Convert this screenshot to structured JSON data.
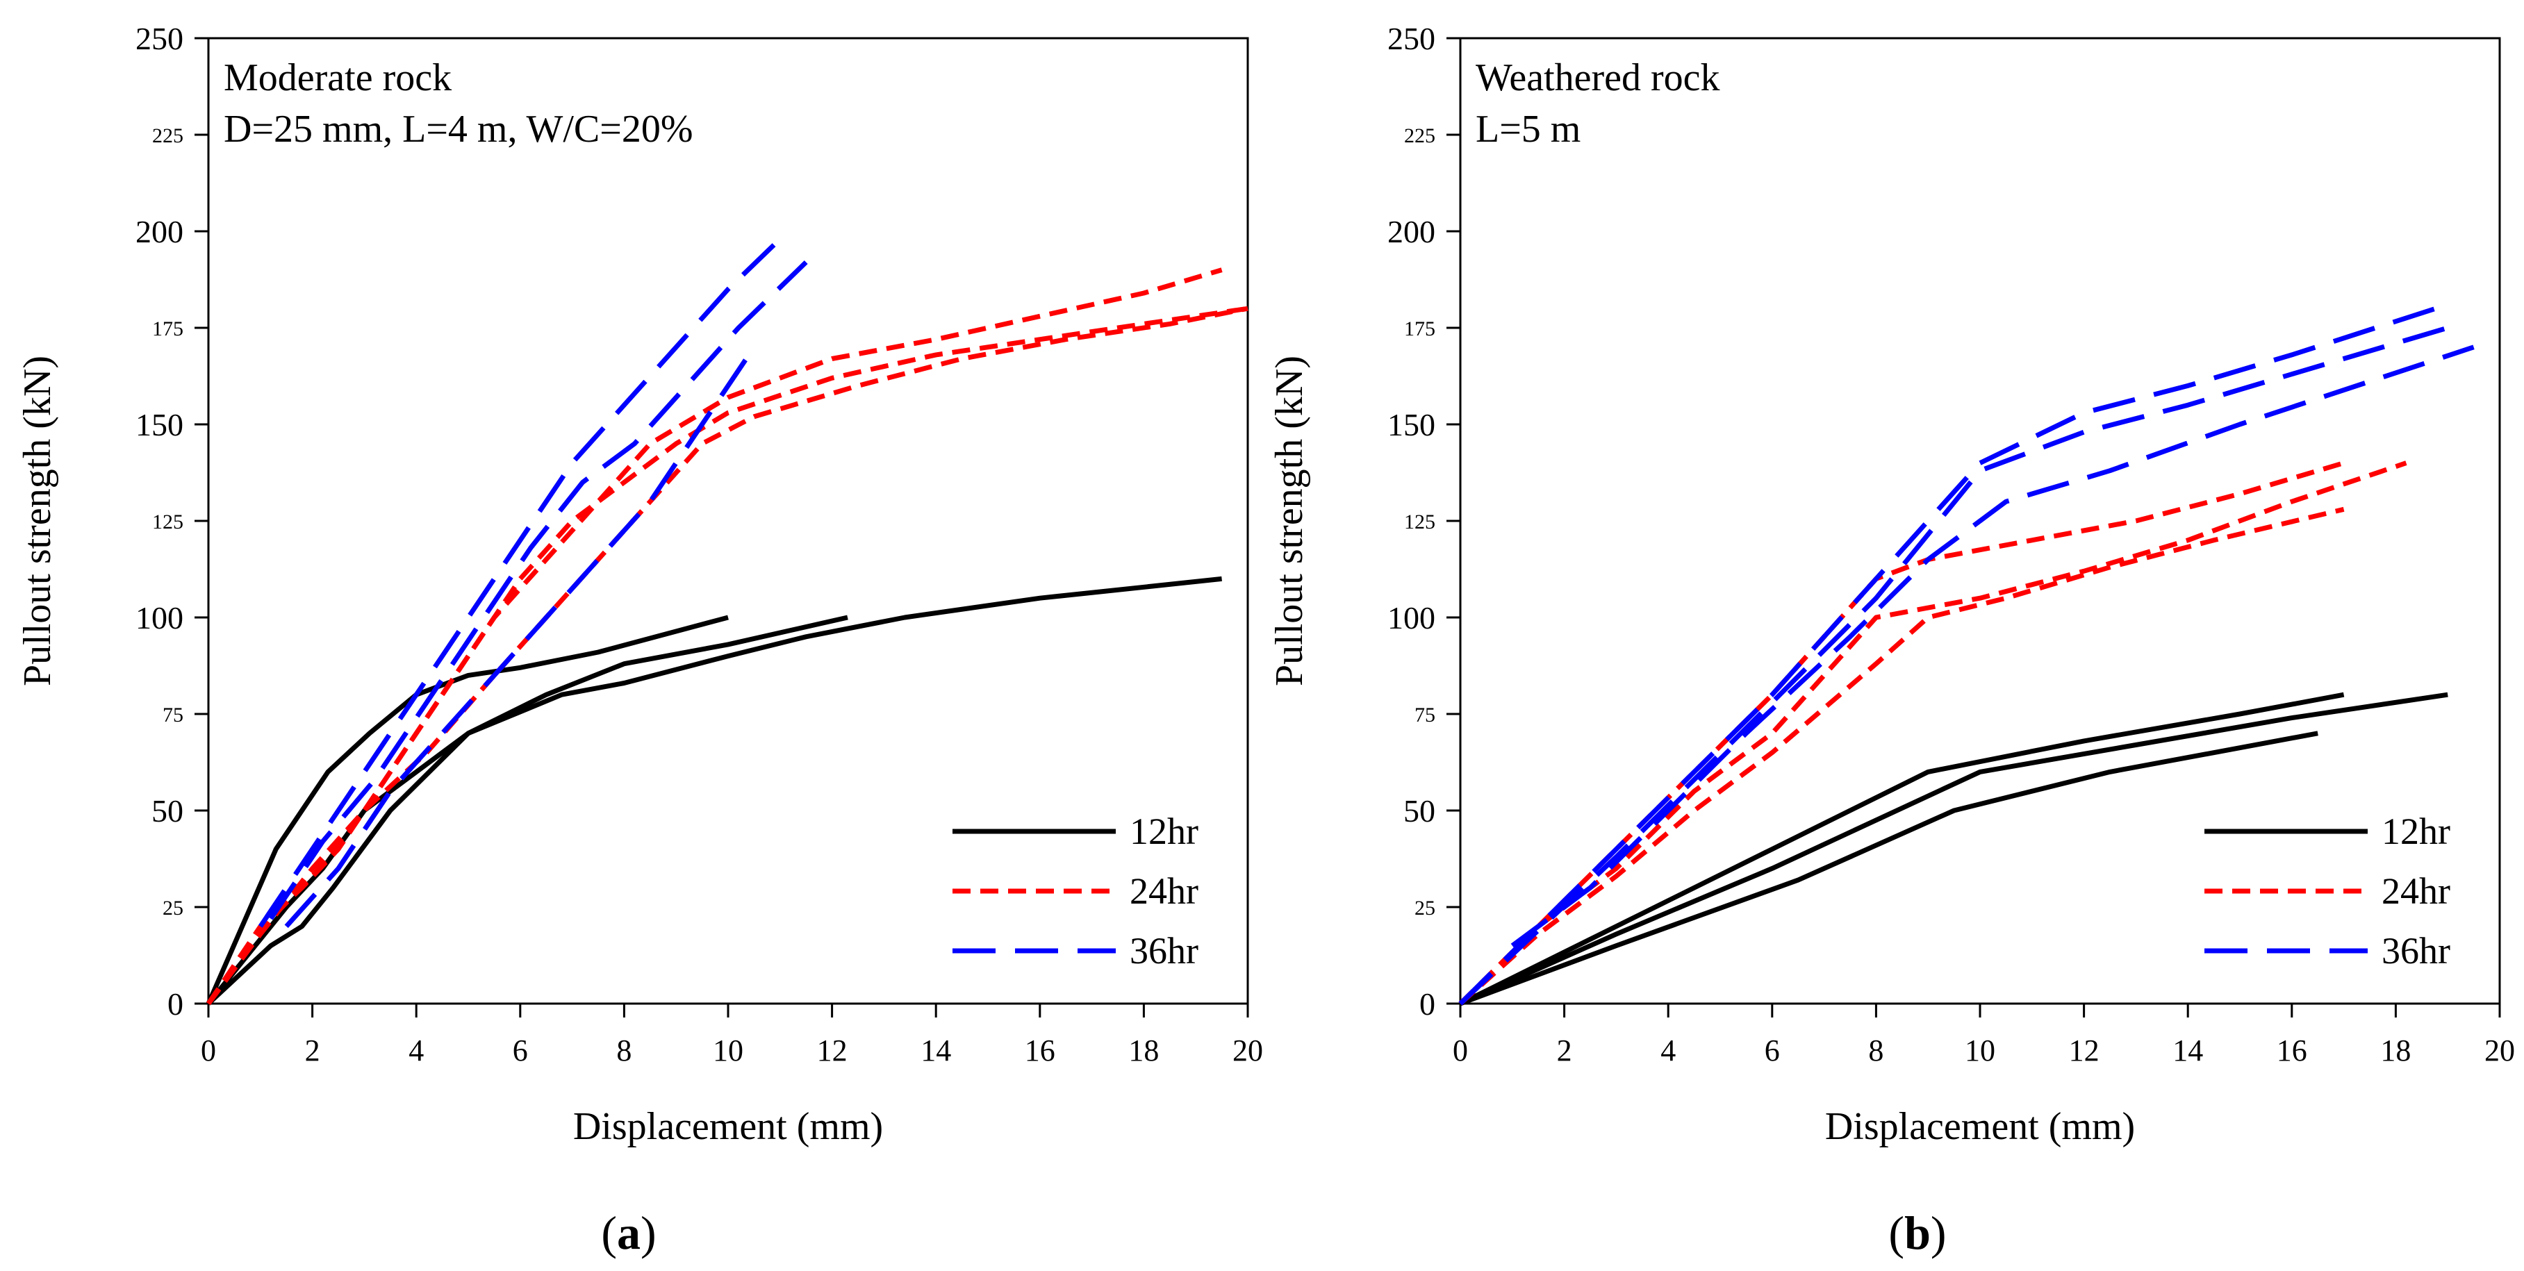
{
  "figure_labels": [
    "(a)",
    "(b)"
  ],
  "series_styles": [
    {
      "name": "12hr",
      "color": "#000000",
      "dash": "solid"
    },
    {
      "name": "24hr",
      "color": "#ff0000",
      "dash": "short-dash"
    },
    {
      "name": "36hr",
      "color": "#0000ff",
      "dash": "long-dash"
    }
  ],
  "chart_data": [
    {
      "type": "line",
      "panel": "(a)",
      "annotation_lines": [
        "Moderate rock",
        "D=25 mm, L=4 m, W/C=20%"
      ],
      "xlabel": "Displacement (mm)",
      "ylabel": "Pullout strength (kN)",
      "xlim": [
        0,
        20
      ],
      "ylim": [
        0,
        250
      ],
      "xticks": [
        0,
        2,
        4,
        6,
        8,
        10,
        12,
        14,
        16,
        18,
        20
      ],
      "yticks": [
        0,
        25,
        50,
        75,
        100,
        125,
        150,
        175,
        200,
        225,
        250
      ],
      "legend_position": "bottom-right",
      "series": [
        {
          "name": "12hr",
          "style": 0,
          "x": [
            0,
            1.3,
            1.8,
            2.3,
            3.1,
            4.0,
            5.0,
            6.0,
            7.5,
            10.0
          ],
          "y": [
            0,
            40,
            50,
            60,
            70,
            80,
            85,
            87,
            91,
            100
          ]
        },
        {
          "name": "12hr",
          "style": 0,
          "x": [
            0,
            1.5,
            2.2,
            3.0,
            4.0,
            5.0,
            6.5,
            8.0,
            10.0,
            12.3
          ],
          "y": [
            0,
            25,
            35,
            50,
            60,
            70,
            80,
            88,
            93,
            100
          ]
        },
        {
          "name": "12hr",
          "style": 0,
          "x": [
            0,
            1.2,
            1.8,
            2.4,
            3.5,
            5.0,
            6.8,
            8.0,
            10.0,
            11.5,
            13.4,
            16.0,
            19.5
          ],
          "y": [
            0,
            15,
            20,
            30,
            50,
            70,
            80,
            83,
            90,
            95,
            100,
            105,
            110
          ]
        },
        {
          "name": "24hr",
          "style": 1,
          "x": [
            0,
            1.0,
            1.8,
            2.5,
            3.5,
            4.5,
            5.5,
            6.5,
            7.5,
            8.5,
            10.0,
            12.0,
            14.0,
            16.0,
            18.0,
            19.5
          ],
          "y": [
            0,
            20,
            30,
            40,
            60,
            80,
            100,
            115,
            130,
            145,
            157,
            167,
            172,
            178,
            184,
            190
          ]
        },
        {
          "name": "24hr",
          "style": 1,
          "x": [
            0,
            1.2,
            2.0,
            3.0,
            4.0,
            5.0,
            6.0,
            7.0,
            8.0,
            9.0,
            10.0,
            12.0,
            14.0,
            16.0,
            18.0,
            20.0
          ],
          "y": [
            0,
            22,
            33,
            50,
            70,
            90,
            110,
            125,
            135,
            145,
            153,
            162,
            168,
            172,
            176,
            180
          ]
        },
        {
          "name": "24hr",
          "style": 1,
          "x": [
            0,
            1.0,
            2.0,
            3.0,
            4.2,
            5.5,
            6.5,
            7.5,
            8.5,
            9.5,
            10.5,
            12.5,
            14.5,
            16.5,
            18.5,
            20.0
          ],
          "y": [
            0,
            18,
            35,
            50,
            65,
            85,
            100,
            115,
            130,
            145,
            152,
            160,
            167,
            172,
            176,
            180
          ]
        },
        {
          "name": "36hr",
          "style": 2,
          "x": [
            1.0,
            2.0,
            3.0,
            4.0,
            5.0,
            6.0,
            7.0,
            8.0,
            9.0,
            10.0,
            11.0
          ],
          "y": [
            20,
            40,
            60,
            80,
            100,
            120,
            140,
            155,
            170,
            185,
            198
          ]
        },
        {
          "name": "36hr",
          "style": 2,
          "x": [
            1.2,
            2.2,
            3.2,
            4.2,
            5.2,
            6.2,
            7.2,
            8.2,
            9.2,
            10.2,
            11.5
          ],
          "y": [
            22,
            42,
            58,
            78,
            98,
            118,
            135,
            145,
            160,
            175,
            192
          ]
        },
        {
          "name": "36hr",
          "style": 2,
          "x": [
            1.5,
            2.5,
            3.5,
            4.5,
            5.5,
            6.5,
            7.5,
            8.5,
            9.5,
            10.5
          ],
          "y": [
            20,
            35,
            55,
            70,
            85,
            100,
            115,
            130,
            150,
            170
          ]
        }
      ]
    },
    {
      "type": "line",
      "panel": "(b)",
      "annotation_lines": [
        "Weathered rock",
        "L=5 m"
      ],
      "xlabel": "Displacement (mm)",
      "ylabel": "Pullout strength (kN)",
      "xlim": [
        0,
        20
      ],
      "ylim": [
        0,
        250
      ],
      "xticks": [
        0,
        2,
        4,
        6,
        8,
        10,
        12,
        14,
        16,
        18,
        20
      ],
      "yticks": [
        0,
        25,
        50,
        75,
        100,
        125,
        150,
        175,
        200,
        225,
        250
      ],
      "legend_position": "bottom-right",
      "series": [
        {
          "name": "12hr",
          "style": 0,
          "x": [
            0,
            3.0,
            6.0,
            9.0,
            12.0,
            15.0,
            17.0
          ],
          "y": [
            0,
            20,
            40,
            60,
            68,
            75,
            80
          ]
        },
        {
          "name": "12hr",
          "style": 0,
          "x": [
            0,
            3.0,
            6.0,
            10.0,
            13.0,
            16.0,
            19.0
          ],
          "y": [
            0,
            18,
            35,
            60,
            67,
            74,
            80
          ]
        },
        {
          "name": "12hr",
          "style": 0,
          "x": [
            0,
            3.0,
            6.5,
            9.5,
            12.5,
            16.5
          ],
          "y": [
            0,
            15,
            32,
            50,
            60,
            70
          ]
        },
        {
          "name": "24hr",
          "style": 1,
          "x": [
            0,
            1.5,
            3.0,
            4.5,
            6.0,
            8.0,
            9.0,
            11.0,
            13.0,
            15.0,
            17.0
          ],
          "y": [
            0,
            20,
            40,
            60,
            80,
            110,
            115,
            120,
            125,
            132,
            140
          ]
        },
        {
          "name": "24hr",
          "style": 1,
          "x": [
            0,
            1.5,
            3.0,
            4.5,
            6.0,
            8.0,
            10.0,
            12.0,
            14.0,
            16.0,
            18.2
          ],
          "y": [
            0,
            20,
            35,
            55,
            70,
            100,
            105,
            112,
            120,
            130,
            140
          ]
        },
        {
          "name": "24hr",
          "style": 1,
          "x": [
            0,
            1.5,
            3.0,
            4.5,
            6.0,
            8.0,
            9.0,
            10.5,
            12.5,
            14.5,
            17.0
          ],
          "y": [
            0,
            18,
            33,
            50,
            65,
            88,
            100,
            105,
            113,
            120,
            128
          ]
        },
        {
          "name": "36hr",
          "style": 2,
          "x": [
            0,
            1.5,
            3.0,
            4.5,
            6.0,
            8.0,
            10.0,
            12.0,
            14.0,
            16.0,
            19.0
          ],
          "y": [
            0,
            20,
            40,
            60,
            80,
            110,
            140,
            153,
            160,
            168,
            181
          ]
        },
        {
          "name": "36hr",
          "style": 2,
          "x": [
            0,
            1.5,
            3.0,
            4.5,
            6.0,
            8.0,
            10.0,
            12.0,
            14.0,
            16.0,
            19.0
          ],
          "y": [
            0,
            19,
            38,
            58,
            78,
            105,
            138,
            148,
            155,
            163,
            175
          ]
        },
        {
          "name": "36hr",
          "style": 2,
          "x": [
            1.0,
            2.5,
            4.0,
            5.5,
            7.5,
            9.0,
            10.5,
            12.5,
            15.0,
            19.5
          ],
          "y": [
            15,
            30,
            50,
            70,
            95,
            115,
            130,
            138,
            150,
            170
          ]
        }
      ]
    }
  ]
}
